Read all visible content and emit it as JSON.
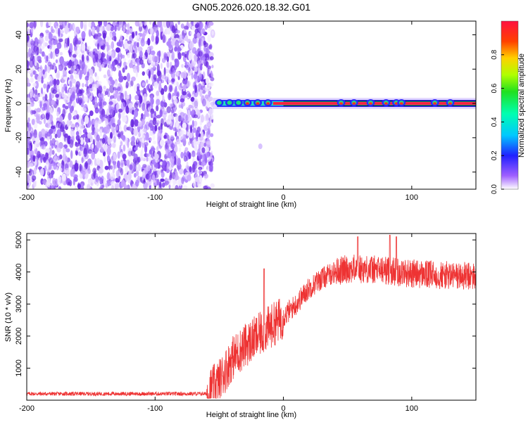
{
  "title": "GN05.2026.020.18.32.G01",
  "chart_data": [
    {
      "type": "heatmap",
      "xlabel": "Height of straight line (km)",
      "ylabel": "Frequency (Hz)",
      "xlim": [
        -200,
        150
      ],
      "ylim": [
        -50,
        48
      ],
      "xticks": [
        "-200",
        "-100",
        "0",
        "100"
      ],
      "yticks": [
        "40",
        "20",
        "0",
        "-20",
        "-40"
      ],
      "colorbar": {
        "label": "Normalized spectral amplitude",
        "ticks": [
          "0.0",
          "0.2",
          "0.4",
          "0.6",
          "0.8"
        ],
        "range": [
          0,
          1
        ]
      },
      "noise_region_km": [
        -200,
        -55
      ],
      "signal_start_km": -55,
      "signal_frequency_hz": 0
    },
    {
      "type": "line",
      "xlabel": "Height of straight line (km)",
      "ylabel": "SNR (10 * v/v)",
      "xlim": [
        -200,
        150
      ],
      "ylim": [
        0,
        5200
      ],
      "xticks": [
        "-200",
        "-100",
        "0",
        "100"
      ],
      "yticks": [
        "5000",
        "4000",
        "3000",
        "2000",
        "1000"
      ],
      "color": "#ee3333",
      "envelope": {
        "x": [
          -200,
          -60,
          -50,
          -40,
          -30,
          -20,
          -10,
          0,
          10,
          20,
          30,
          40,
          50,
          60,
          80,
          100,
          120,
          150
        ],
        "y": [
          200,
          200,
          600,
          1300,
          1700,
          2000,
          2300,
          2600,
          3000,
          3500,
          3800,
          4000,
          4100,
          4100,
          4050,
          3950,
          3900,
          3850
        ]
      },
      "noise_amplitude": [
        {
          "x_from": -200,
          "x_to": -60,
          "amp": 60
        },
        {
          "x_from": -60,
          "x_to": 0,
          "amp": 700
        },
        {
          "x_from": 0,
          "x_to": 40,
          "amp": 350
        },
        {
          "x_from": 40,
          "x_to": 150,
          "amp": 450
        }
      ],
      "spikes": [
        {
          "x": -15,
          "y": 4100
        },
        {
          "x": 58,
          "y": 5100
        },
        {
          "x": 83,
          "y": 5150
        },
        {
          "x": 88,
          "y": 5100
        }
      ]
    }
  ]
}
